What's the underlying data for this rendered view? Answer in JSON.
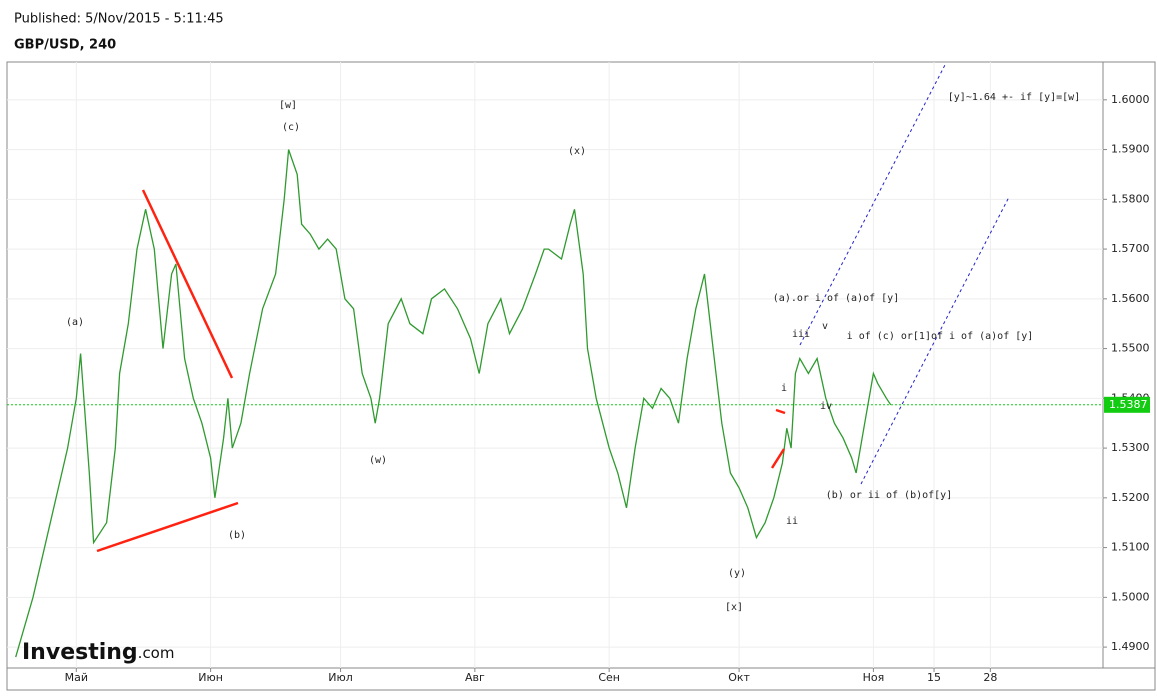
{
  "published": "Published: 5/Nov/2015 - 5:11:45",
  "chart_data": {
    "type": "line",
    "title": "GBP/USD, 240",
    "color": "#2f9a2f",
    "grid": true,
    "x": [
      -14,
      -10,
      -6,
      -2,
      0,
      1,
      3,
      4,
      7,
      9,
      10,
      12,
      14,
      16,
      18,
      19,
      20,
      22,
      23,
      25,
      27,
      29,
      31,
      32,
      34,
      35,
      36,
      38,
      40,
      43,
      46,
      48,
      49,
      51,
      52,
      54,
      56,
      58,
      60,
      62,
      64,
      66,
      68,
      69,
      70,
      72,
      75,
      77,
      80,
      82,
      85,
      88,
      91,
      93,
      95,
      98,
      100,
      103,
      106,
      108,
      109,
      112,
      114,
      115,
      117,
      118,
      120,
      123,
      125,
      127,
      129,
      131,
      133,
      135,
      137,
      139,
      141,
      143,
      145,
      147,
      149,
      151,
      153,
      155,
      157,
      159,
      161,
      163,
      164,
      165,
      166,
      167,
      169,
      171,
      173,
      175,
      177,
      179,
      180,
      182,
      184,
      185,
      187,
      188
    ],
    "values": [
      1.488,
      1.5,
      1.515,
      1.53,
      1.54,
      1.549,
      1.525,
      1.511,
      1.515,
      1.53,
      1.545,
      1.555,
      1.57,
      1.578,
      1.57,
      1.56,
      1.55,
      1.565,
      1.567,
      1.548,
      1.54,
      1.535,
      1.528,
      1.52,
      1.532,
      1.54,
      1.53,
      1.535,
      1.545,
      1.558,
      1.565,
      1.58,
      1.59,
      1.585,
      1.575,
      1.573,
      1.57,
      1.572,
      1.57,
      1.56,
      1.558,
      1.545,
      1.54,
      1.535,
      1.54,
      1.555,
      1.56,
      1.555,
      1.553,
      1.56,
      1.562,
      1.558,
      1.552,
      1.545,
      1.555,
      1.56,
      1.553,
      1.558,
      1.565,
      1.57,
      1.57,
      1.568,
      1.575,
      1.578,
      1.565,
      1.55,
      1.54,
      1.53,
      1.525,
      1.518,
      1.53,
      1.54,
      1.538,
      1.542,
      1.54,
      1.535,
      1.548,
      1.558,
      1.565,
      1.55,
      1.535,
      1.525,
      1.522,
      1.518,
      1.512,
      1.515,
      1.52,
      1.527,
      1.534,
      1.53,
      1.545,
      1.548,
      1.545,
      1.548,
      1.54,
      1.535,
      1.532,
      1.528,
      1.525,
      1.535,
      1.545,
      1.543,
      1.54,
      1.5387
    ],
    "xlim": [
      -16,
      237
    ],
    "ylim": [
      1.4858,
      1.6076
    ],
    "xticks": [
      {
        "value": 0,
        "label": "Май"
      },
      {
        "value": 31,
        "label": "Июн"
      },
      {
        "value": 61,
        "label": "Июл"
      },
      {
        "value": 92,
        "label": "Авг"
      },
      {
        "value": 123,
        "label": "Сен"
      },
      {
        "value": 153,
        "label": "Окт"
      },
      {
        "value": 184,
        "label": "Ноя"
      },
      {
        "value": 198,
        "label": "15"
      },
      {
        "value": 211,
        "label": "28"
      }
    ],
    "yticks": [
      {
        "value": 1.49,
        "label": "1.4900"
      },
      {
        "value": 1.5,
        "label": "1.5000"
      },
      {
        "value": 1.51,
        "label": "1.5100"
      },
      {
        "value": 1.52,
        "label": "1.5200"
      },
      {
        "value": 1.53,
        "label": "1.5300"
      },
      {
        "value": 1.54,
        "label": "1.5400"
      },
      {
        "value": 1.55,
        "label": "1.5500"
      },
      {
        "value": 1.56,
        "label": "1.5600"
      },
      {
        "value": 1.57,
        "label": "1.5700"
      },
      {
        "value": 1.58,
        "label": "1.5800"
      },
      {
        "value": 1.59,
        "label": "1.5900"
      },
      {
        "value": 1.6,
        "label": "1.6000"
      }
    ],
    "last_price": 1.5387,
    "annotations": [
      "(a)",
      "[w]",
      "(c)",
      "(x)",
      "(w)",
      "(b)",
      "(y)",
      "[x]",
      "ii",
      "i",
      "iii",
      "v",
      "iv",
      "(a).or i of (a)of [y]",
      "i of (c) or[1]of  i of (a)of [y]",
      "(b) or ii of (b)of[y]",
      "[y]~1.64 +- if [y]=[w]"
    ],
    "watermark": {
      "brand": "Investing",
      "suffix": ".com"
    }
  }
}
